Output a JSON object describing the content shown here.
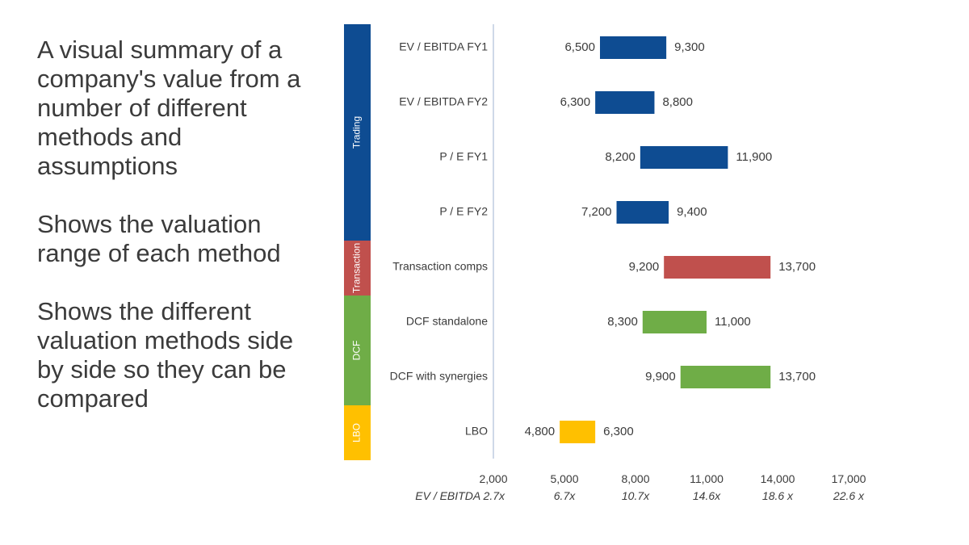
{
  "description": {
    "paragraphs": [
      "A visual summary of a company's value from a number of different methods and assumptions",
      "Shows the valuation range of each method",
      "Shows the different valuation methods side by side so they can be compared"
    ]
  },
  "chart_data": {
    "type": "bar",
    "subtype": "floating-range",
    "title": "",
    "xlim": [
      2000,
      17000
    ],
    "x_ticks": [
      {
        "value": 2000,
        "label": "2,000",
        "multiple": "EV / EBITDA  2.7x"
      },
      {
        "value": 5000,
        "label": "5,000",
        "multiple": "6.7x"
      },
      {
        "value": 8000,
        "label": "8,000",
        "multiple": "10.7x"
      },
      {
        "value": 11000,
        "label": "11,000",
        "multiple": "14.6x"
      },
      {
        "value": 14000,
        "label": "14,000",
        "multiple": "18.6 x"
      },
      {
        "value": 17000,
        "label": "17,000",
        "multiple": "22.6 x"
      }
    ],
    "groups": [
      {
        "name": "Trading",
        "color": "#0e4c92",
        "count": 4
      },
      {
        "name": "Transaction",
        "color": "#c0504d",
        "count": 1
      },
      {
        "name": "DCF",
        "color": "#6fad47",
        "count": 2
      },
      {
        "name": "LBO",
        "color": "#ffc000",
        "count": 1
      }
    ],
    "rows": [
      {
        "label": "EV / EBITDA FY1",
        "low": 6500,
        "high": 9300,
        "low_label": "6,500",
        "high_label": "9,300",
        "group": "Trading"
      },
      {
        "label": "EV / EBITDA FY2",
        "low": 6300,
        "high": 8800,
        "low_label": "6,300",
        "high_label": "8,800",
        "group": "Trading"
      },
      {
        "label": "P / E FY1",
        "low": 8200,
        "high": 11900,
        "low_label": "8,200",
        "high_label": "11,900",
        "group": "Trading"
      },
      {
        "label": "P / E FY2",
        "low": 7200,
        "high": 9400,
        "low_label": "7,200",
        "high_label": "9,400",
        "group": "Trading"
      },
      {
        "label": "Transaction comps",
        "low": 9200,
        "high": 13700,
        "low_label": "9,200",
        "high_label": "13,700",
        "group": "Transaction"
      },
      {
        "label": "DCF standalone",
        "low": 8300,
        "high": 11000,
        "low_label": "8,300",
        "high_label": "11,000",
        "group": "DCF"
      },
      {
        "label": "DCF with synergies",
        "low": 9900,
        "high": 13700,
        "low_label": "9,900",
        "high_label": "13,700",
        "group": "DCF"
      },
      {
        "label": "LBO",
        "low": 4800,
        "high": 6300,
        "low_label": "4,800",
        "high_label": "6,300",
        "group": "LBO"
      }
    ]
  }
}
